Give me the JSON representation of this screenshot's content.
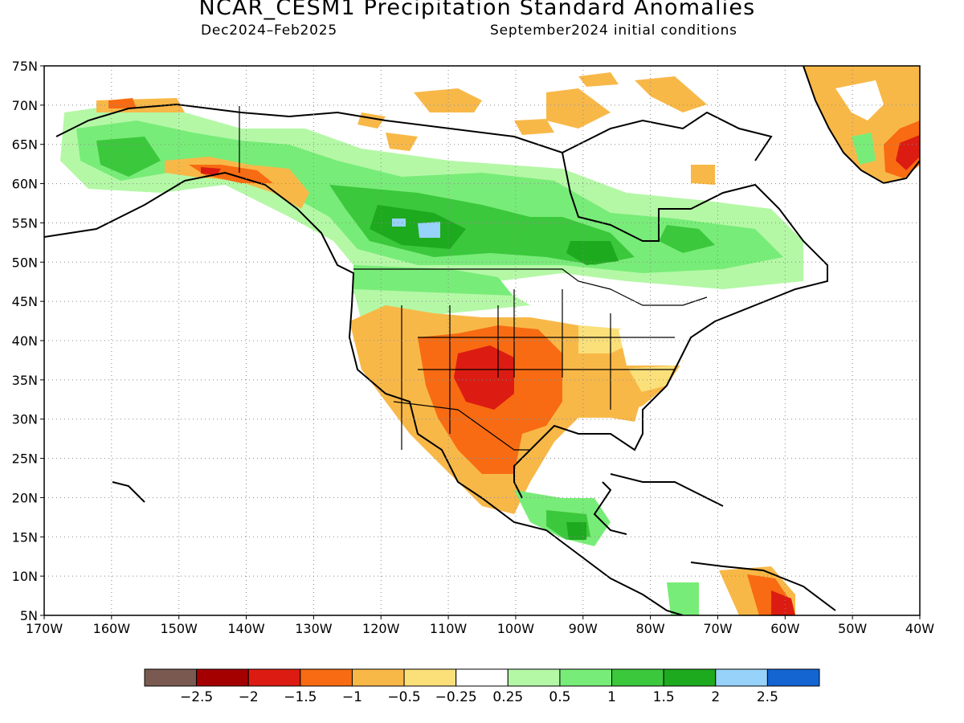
{
  "header": {
    "title": "NCAR_CESM1 Precipitation Standard Anomalies",
    "period": "Dec2024–Feb2025",
    "init": "September2024 initial conditions"
  },
  "map": {
    "lon_ticks": [
      "170W",
      "160W",
      "150W",
      "140W",
      "130W",
      "120W",
      "110W",
      "100W",
      "90W",
      "80W",
      "70W",
      "60W",
      "50W",
      "40W"
    ],
    "lat_ticks": [
      "75N",
      "70N",
      "65N",
      "60N",
      "55N",
      "50N",
      "45N",
      "40N",
      "35N",
      "30N",
      "25N",
      "20N",
      "15N",
      "10N",
      "5N"
    ],
    "lon_range": [
      -170,
      -40
    ],
    "lat_range": [
      5,
      75
    ],
    "grid": "dotted"
  },
  "legend": {
    "colors": [
      "#7a5a50",
      "#a50000",
      "#dc1c12",
      "#f86b12",
      "#f8b848",
      "#fbe07a",
      "#ffffff",
      "#b4f8a6",
      "#78ec78",
      "#3cc83c",
      "#1eaa1e",
      "#96d2fa",
      "#1464d2"
    ],
    "labels": [
      "−2.5",
      "−2",
      "−1.5",
      "−1",
      "−0.5",
      "−0.25",
      "0.25",
      "0.5",
      "1",
      "1.5",
      "2",
      "2.5"
    ]
  }
}
